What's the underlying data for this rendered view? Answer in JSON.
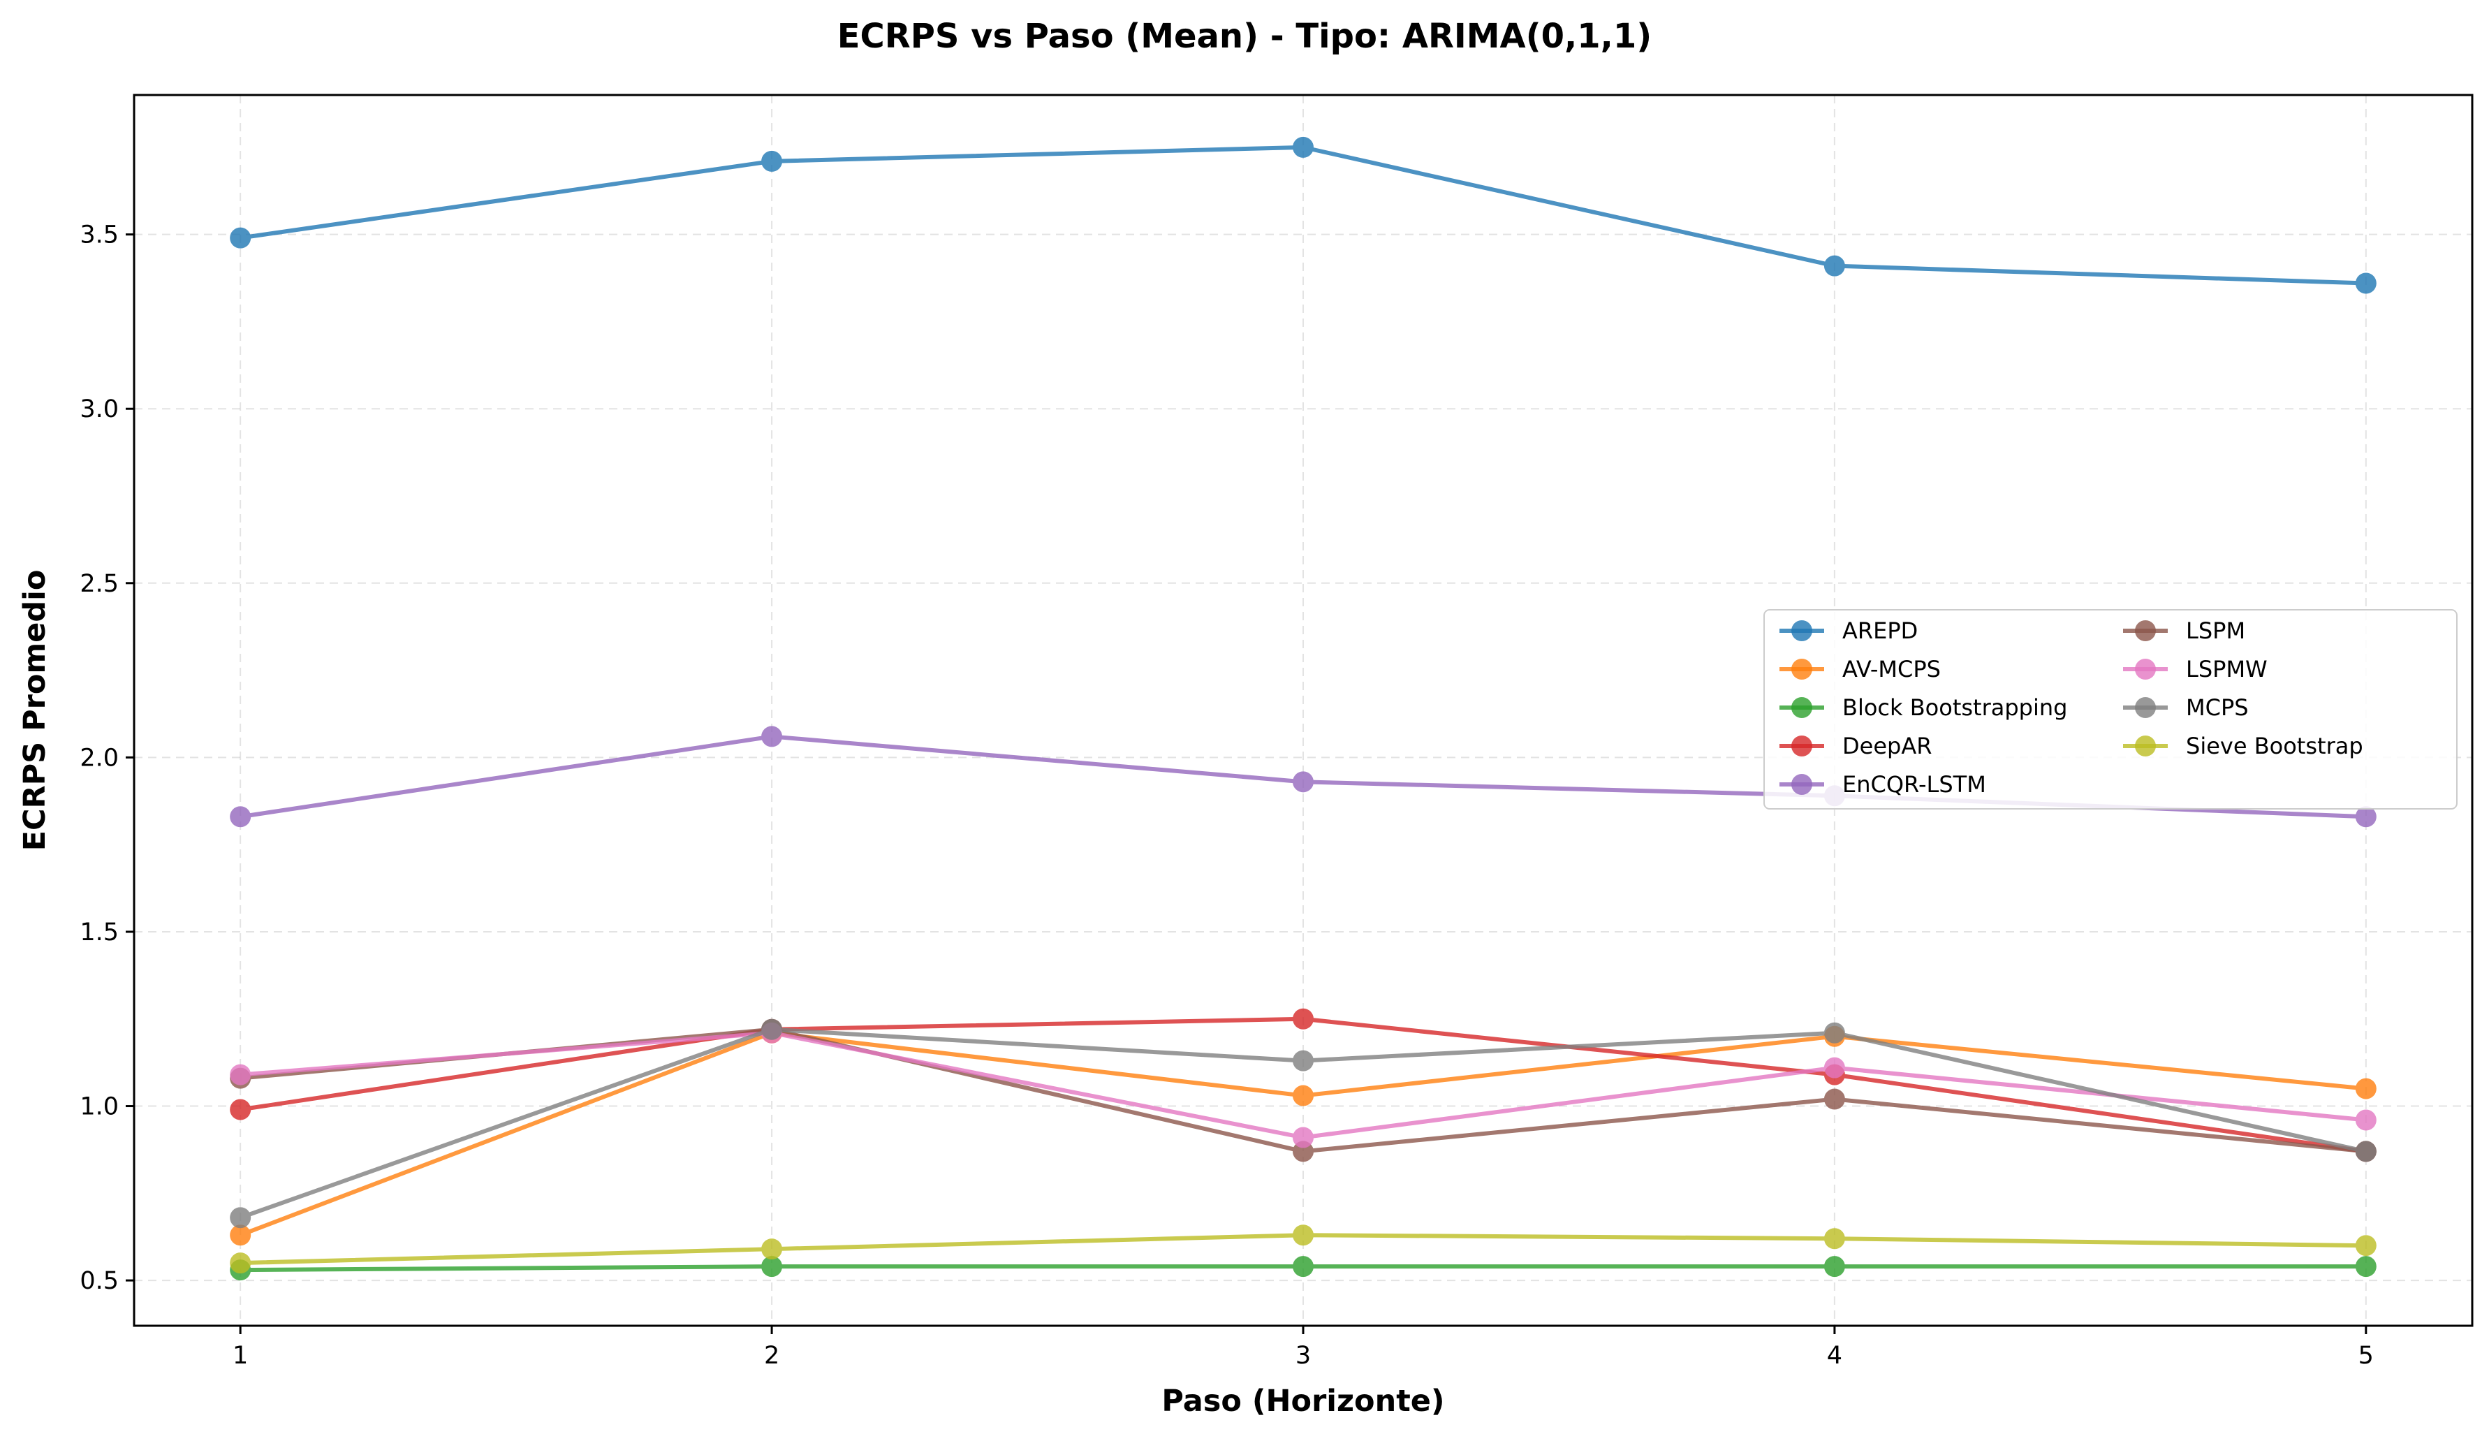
{
  "chart_data": {
    "type": "line",
    "title": "ECRPS vs Paso (Mean) - Tipo: ARIMA(0,1,1)",
    "xlabel": "Paso (Horizonte)",
    "ylabel": "ECRPS Promedio",
    "x": [
      1,
      2,
      3,
      4,
      5
    ],
    "x_ticks": [
      "1",
      "2",
      "3",
      "4",
      "5"
    ],
    "xlim": [
      0.8,
      5.2
    ],
    "ylim": [
      0.37,
      3.9
    ],
    "y_ticks": [
      "0.5",
      "1.0",
      "1.5",
      "2.0",
      "2.5",
      "3.0",
      "3.5"
    ],
    "grid": true,
    "legend_position": "center-right",
    "series": [
      {
        "name": "AREPD",
        "color": "#1f77b4",
        "values": [
          3.49,
          3.71,
          3.75,
          3.41,
          3.36
        ]
      },
      {
        "name": "AV-MCPS",
        "color": "#ff7f0e",
        "values": [
          0.63,
          1.21,
          1.03,
          1.2,
          1.05
        ]
      },
      {
        "name": "Block Bootstrapping",
        "color": "#2ca02c",
        "values": [
          0.53,
          0.54,
          0.54,
          0.54,
          0.54
        ]
      },
      {
        "name": "DeepAR",
        "color": "#d62728",
        "values": [
          0.99,
          1.22,
          1.25,
          1.09,
          0.87
        ]
      },
      {
        "name": "EnCQR-LSTM",
        "color": "#9467bd",
        "values": [
          1.83,
          2.06,
          1.93,
          1.89,
          1.83
        ]
      },
      {
        "name": "LSPM",
        "color": "#8c564b",
        "values": [
          1.08,
          1.22,
          0.87,
          1.02,
          0.87
        ]
      },
      {
        "name": "LSPMW",
        "color": "#e377c2",
        "values": [
          1.09,
          1.21,
          0.91,
          1.11,
          0.96
        ]
      },
      {
        "name": "MCPS",
        "color": "#7f7f7f",
        "values": [
          0.68,
          1.22,
          1.13,
          1.21,
          0.87
        ]
      },
      {
        "name": "Sieve Bootstrap",
        "color": "#bcbd22",
        "values": [
          0.55,
          0.59,
          0.63,
          0.62,
          0.6
        ]
      }
    ]
  }
}
